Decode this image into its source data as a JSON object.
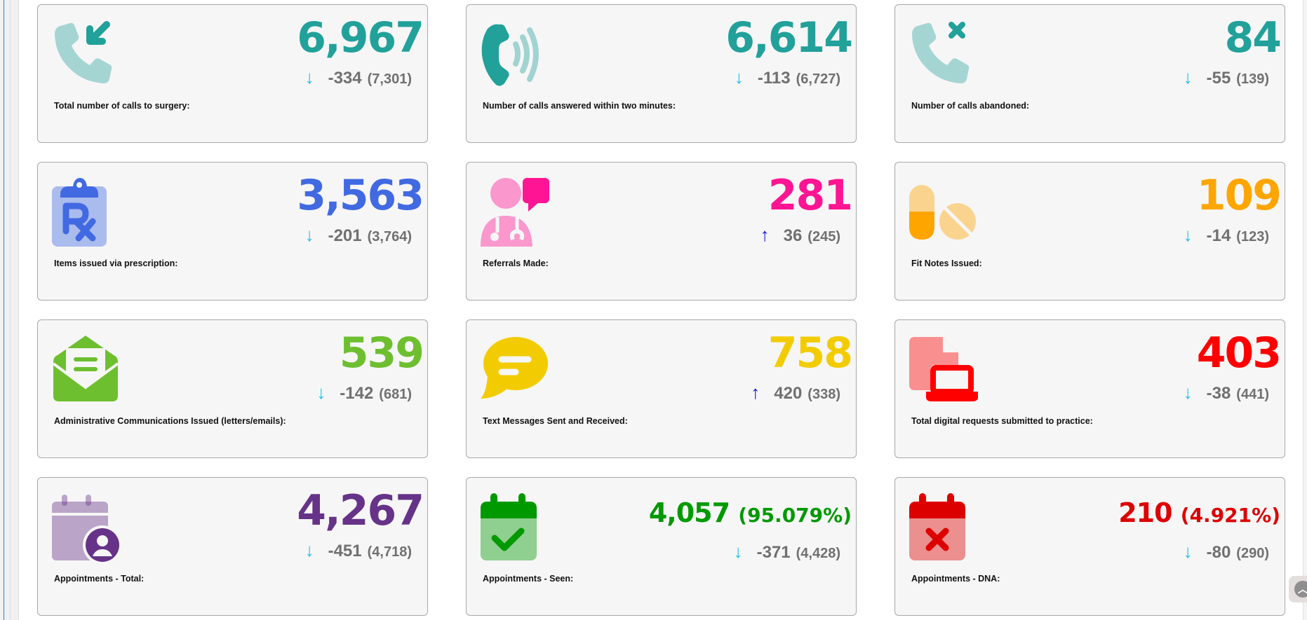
{
  "stats": [
    {
      "id": "calls-total",
      "label": "Total number of calls to surgery:",
      "value": "6,967",
      "percent": null,
      "direction": "down",
      "change": "-334",
      "previous": "(7,301)",
      "color": "#21a19a",
      "icon": "phone-incoming-icon"
    },
    {
      "id": "calls-answered",
      "label": "Number of calls answered within two minutes:",
      "value": "6,614",
      "percent": null,
      "direction": "down",
      "change": "-113",
      "previous": "(6,727)",
      "color": "#21a19a",
      "icon": "phone-ringing-icon"
    },
    {
      "id": "calls-abandoned",
      "label": "Number of calls abandoned:",
      "value": "84",
      "percent": null,
      "direction": "down",
      "change": "-55",
      "previous": "(139)",
      "color": "#21a19a",
      "icon": "phone-missed-icon"
    },
    {
      "id": "prescriptions",
      "label": "Items issued via prescription:",
      "value": "3,563",
      "percent": null,
      "direction": "down",
      "change": "-201",
      "previous": "(3,764)",
      "color": "#4169e1",
      "icon": "prescription-clipboard-icon"
    },
    {
      "id": "referrals",
      "label": "Referrals Made:",
      "value": "281",
      "percent": null,
      "direction": "up",
      "change": "36",
      "previous": "(245)",
      "color": "#ff1493",
      "icon": "doctor-speech-icon"
    },
    {
      "id": "fit-notes",
      "label": "Fit Notes Issued:",
      "value": "109",
      "percent": null,
      "direction": "down",
      "change": "-14",
      "previous": "(123)",
      "color": "#ffa500",
      "icon": "pills-icon"
    },
    {
      "id": "admin-comms",
      "label": "Administrative Communications Issued (letters/emails):",
      "value": "539",
      "percent": null,
      "direction": "down",
      "change": "-142",
      "previous": "(681)",
      "color": "#6dbf2f",
      "icon": "envelope-open-text-icon"
    },
    {
      "id": "text-messages",
      "label": "Text Messages Sent and Received:",
      "value": "758",
      "percent": null,
      "direction": "up",
      "change": "420",
      "previous": "(338)",
      "color": "#f2cc00",
      "icon": "comment-lines-icon"
    },
    {
      "id": "digital-requests",
      "label": "Total digital requests submitted to practice:",
      "value": "403",
      "percent": null,
      "direction": "down",
      "change": "-38",
      "previous": "(441)",
      "color": "#ff0000",
      "icon": "file-laptop-icon"
    },
    {
      "id": "appointments-total",
      "label": "Appointments - Total:",
      "value": "4,267",
      "percent": null,
      "direction": "down",
      "change": "-451",
      "previous": "(4,718)",
      "color": "#663388",
      "icon": "calendar-user-icon"
    },
    {
      "id": "appointments-seen",
      "label": "Appointments - Seen:",
      "value": "4,057",
      "percent": "(95.079%)",
      "direction": "down",
      "change": "-371",
      "previous": "(4,428)",
      "color": "#009900",
      "icon": "calendar-check-icon"
    },
    {
      "id": "appointments-dna",
      "label": "Appointments - DNA:",
      "value": "210",
      "percent": "(4.921%)",
      "direction": "down",
      "change": "-80",
      "previous": "(290)",
      "color": "#dd0000",
      "icon": "calendar-xmark-icon"
    }
  ],
  "arrows": {
    "down": "↓",
    "up": "↑"
  },
  "colors": {
    "down_arrow": "#1ec0ef",
    "up_arrow": "#1010d8",
    "change_text": "#707070",
    "card_bg": "#f6f6f6",
    "card_border": "#a9a9a9"
  },
  "scroll_top": {
    "icon": "chevron-up-icon",
    "glyph": "︿"
  }
}
